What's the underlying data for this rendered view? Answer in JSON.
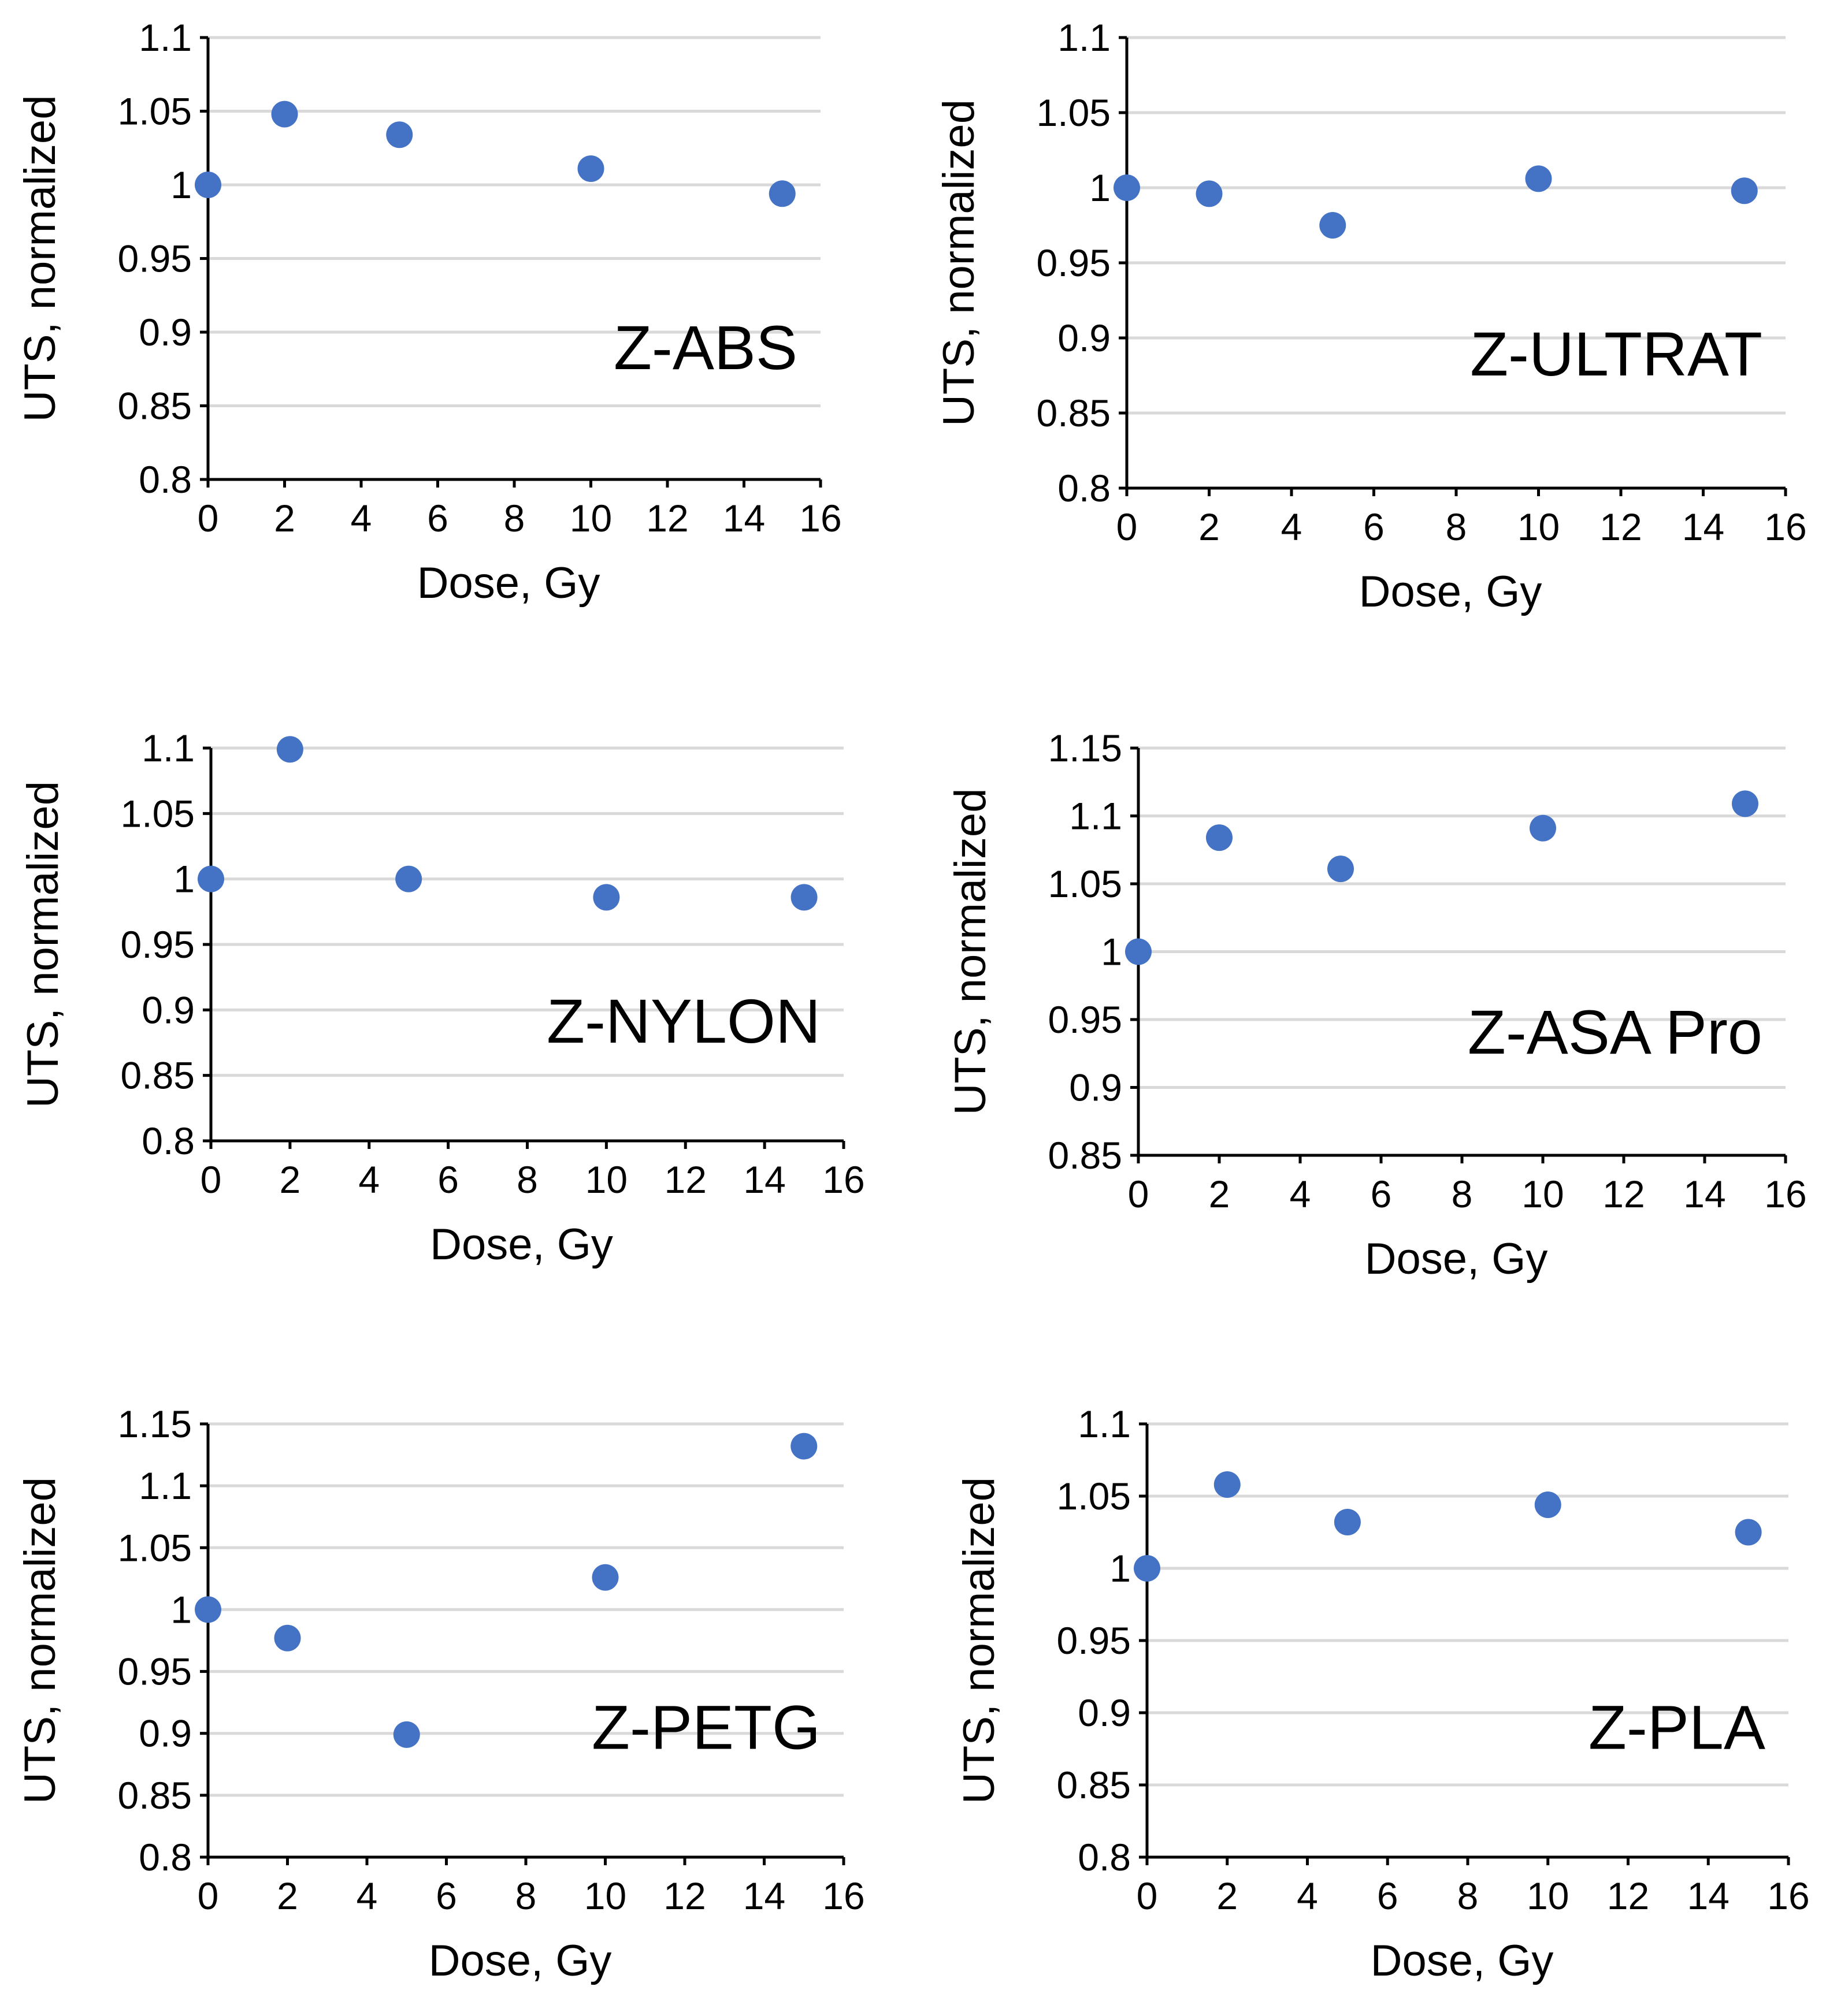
{
  "chart_data": [
    {
      "type": "scatter",
      "label": "Z-ABS",
      "xlabel": "Dose, Gy",
      "ylabel": "UTS, normalized",
      "xlim": [
        0,
        16
      ],
      "ylim": [
        0.8,
        1.1
      ],
      "xticks": [
        "0",
        "2",
        "4",
        "6",
        "8",
        "10",
        "12",
        "14",
        "16"
      ],
      "yticks": [
        "0.8",
        "0.85",
        "0.9",
        "0.95",
        "1",
        "1.05",
        "1.1"
      ],
      "grid": "horizontal",
      "marker_color": "#4472c4",
      "x": [
        0,
        2,
        5,
        10,
        15
      ],
      "y": [
        1.0,
        1.048,
        1.034,
        1.011,
        0.994
      ]
    },
    {
      "type": "scatter",
      "label": "Z-ULTRAT",
      "xlabel": "Dose, Gy",
      "ylabel": "UTS, normalized",
      "xlim": [
        0,
        16
      ],
      "ylim": [
        0.8,
        1.1
      ],
      "xticks": [
        "0",
        "2",
        "4",
        "6",
        "8",
        "10",
        "12",
        "14",
        "16"
      ],
      "yticks": [
        "0.8",
        "0.85",
        "0.9",
        "0.95",
        "1",
        "1.05",
        "1.1"
      ],
      "grid": "horizontal",
      "marker_color": "#4472c4",
      "x": [
        0,
        2,
        5,
        10,
        15
      ],
      "y": [
        1.0,
        0.996,
        0.975,
        1.006,
        0.998
      ]
    },
    {
      "type": "scatter",
      "label": "Z-NYLON",
      "xlabel": "Dose, Gy",
      "ylabel": "UTS, normalized",
      "xlim": [
        0,
        16
      ],
      "ylim": [
        0.8,
        1.1
      ],
      "xticks": [
        "0",
        "2",
        "4",
        "6",
        "8",
        "10",
        "12",
        "14",
        "16"
      ],
      "yticks": [
        "0.8",
        "0.85",
        "0.9",
        "0.95",
        "1",
        "1.05",
        "1.1"
      ],
      "grid": "horizontal",
      "marker_color": "#4472c4",
      "x": [
        0,
        2,
        5,
        10,
        15
      ],
      "y": [
        1.0,
        1.099,
        1.0,
        0.986,
        0.986
      ]
    },
    {
      "type": "scatter",
      "label": "Z-ASA Pro",
      "xlabel": "Dose, Gy",
      "ylabel": "UTS, normalized",
      "xlim": [
        0,
        16
      ],
      "ylim": [
        0.85,
        1.15
      ],
      "xticks": [
        "0",
        "2",
        "4",
        "6",
        "8",
        "10",
        "12",
        "14",
        "16"
      ],
      "yticks": [
        "0.85",
        "0.9",
        "0.95",
        "1",
        "1.05",
        "1.1",
        "1.15"
      ],
      "grid": "horizontal",
      "marker_color": "#4472c4",
      "x": [
        0,
        2,
        5,
        10,
        15
      ],
      "y": [
        1.0,
        1.084,
        1.061,
        1.091,
        1.109
      ]
    },
    {
      "type": "scatter",
      "label": "Z-PETG",
      "xlabel": "Dose, Gy",
      "ylabel": "UTS, normalized",
      "xlim": [
        0,
        16
      ],
      "ylim": [
        0.8,
        1.15
      ],
      "xticks": [
        "0",
        "2",
        "4",
        "6",
        "8",
        "10",
        "12",
        "14",
        "16"
      ],
      "yticks": [
        "0.8",
        "0.85",
        "0.9",
        "0.95",
        "1",
        "1.05",
        "1.1",
        "1.15"
      ],
      "grid": "horizontal",
      "marker_color": "#4472c4",
      "x": [
        0,
        2,
        5,
        10,
        15
      ],
      "y": [
        1.0,
        0.977,
        0.899,
        1.026,
        1.132
      ]
    },
    {
      "type": "scatter",
      "label": "Z-PLA",
      "xlabel": "Dose, Gy",
      "ylabel": "UTS, normalized",
      "xlim": [
        0,
        16
      ],
      "ylim": [
        0.8,
        1.1
      ],
      "xticks": [
        "0",
        "2",
        "4",
        "6",
        "8",
        "10",
        "12",
        "14",
        "16"
      ],
      "yticks": [
        "0.8",
        "0.85",
        "0.9",
        "0.95",
        "1",
        "1.05",
        "1.1"
      ],
      "grid": "horizontal",
      "marker_color": "#4472c4",
      "x": [
        0,
        2,
        5,
        10,
        15
      ],
      "y": [
        1.0,
        1.058,
        1.032,
        1.044,
        1.025
      ]
    }
  ]
}
